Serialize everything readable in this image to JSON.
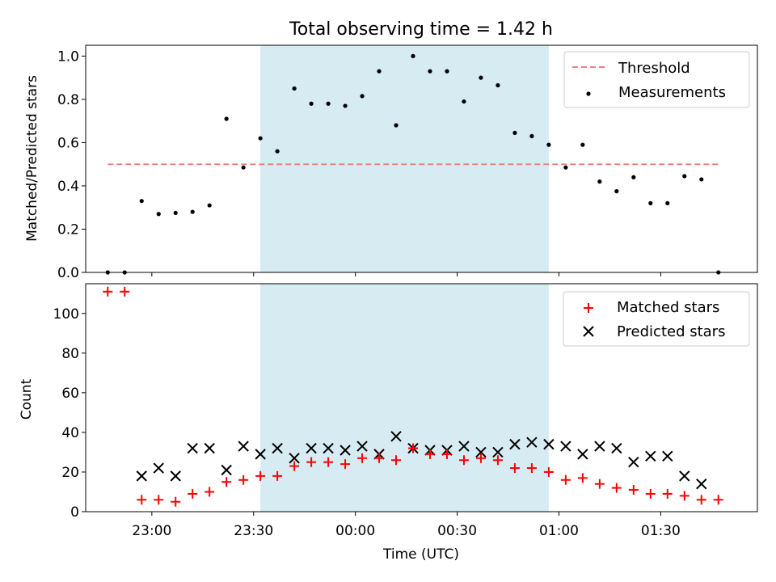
{
  "chart_data": [
    {
      "type": "scatter",
      "title": "Total observing time = 1.42 h",
      "xlabel": "",
      "ylabel": "Matched/Predicted stars",
      "ylim": [
        0,
        1.05
      ],
      "yticks": [
        "0.0",
        "0.2",
        "0.4",
        "0.6",
        "0.8",
        "1.0"
      ],
      "highlight_span": [
        "23:32",
        "00:57"
      ],
      "highlight_color": "#add8e6",
      "threshold": {
        "name": "Threshold",
        "value": 0.5,
        "x_range": [
          "22:47",
          "01:47"
        ],
        "color": "#f08080"
      },
      "series": [
        {
          "name": "Measurements",
          "color": "#000000",
          "x": [
            "22:47",
            "22:52",
            "22:57",
            "23:02",
            "23:07",
            "23:12",
            "23:17",
            "23:22",
            "23:27",
            "23:32",
            "23:37",
            "23:42",
            "23:47",
            "23:52",
            "23:57",
            "00:02",
            "00:07",
            "00:12",
            "00:17",
            "00:22",
            "00:27",
            "00:32",
            "00:37",
            "00:42",
            "00:47",
            "00:52",
            "00:57",
            "01:02",
            "01:07",
            "01:12",
            "01:17",
            "01:22",
            "01:27",
            "01:32",
            "01:37",
            "01:42",
            "01:47"
          ],
          "values": [
            0.0,
            0.0,
            0.33,
            0.27,
            0.275,
            0.28,
            0.31,
            0.71,
            0.485,
            0.62,
            0.56,
            0.85,
            0.78,
            0.78,
            0.77,
            0.815,
            0.93,
            0.68,
            1.0,
            0.93,
            0.93,
            0.79,
            0.9,
            0.865,
            0.645,
            0.63,
            0.59,
            0.485,
            0.59,
            0.42,
            0.375,
            0.44,
            0.32,
            0.32,
            0.445,
            0.43,
            0.0
          ]
        }
      ],
      "legend": [
        "Threshold",
        "Measurements"
      ],
      "legend_position": "top-right"
    },
    {
      "type": "scatter",
      "title": "",
      "xlabel": "Time (UTC)",
      "ylabel": "Count",
      "ylim": [
        0,
        115
      ],
      "yticks": [
        "0",
        "20",
        "40",
        "60",
        "80",
        "100"
      ],
      "xticks": [
        "23:00",
        "23:30",
        "00:00",
        "00:30",
        "01:00",
        "01:30"
      ],
      "highlight_span": [
        "23:32",
        "00:57"
      ],
      "highlight_color": "#add8e6",
      "series": [
        {
          "name": "Matched stars",
          "marker": "plus",
          "color": "#ff0000",
          "x": [
            "22:47",
            "22:52",
            "22:57",
            "23:02",
            "23:07",
            "23:12",
            "23:17",
            "23:22",
            "23:27",
            "23:32",
            "23:37",
            "23:42",
            "23:47",
            "23:52",
            "23:57",
            "00:02",
            "00:07",
            "00:12",
            "00:17",
            "00:22",
            "00:27",
            "00:32",
            "00:37",
            "00:42",
            "00:47",
            "00:52",
            "00:57",
            "01:02",
            "01:07",
            "01:12",
            "01:17",
            "01:22",
            "01:27",
            "01:32",
            "01:37",
            "01:42",
            "01:47"
          ],
          "values": [
            111,
            111,
            6,
            6,
            5,
            9,
            10,
            15,
            16,
            18,
            18,
            23,
            25,
            25,
            24,
            27,
            27,
            26,
            32,
            29,
            29,
            26,
            27,
            26,
            22,
            22,
            20,
            16,
            17,
            14,
            12,
            11,
            9,
            9,
            8,
            6,
            6
          ]
        },
        {
          "name": "Predicted stars",
          "marker": "x",
          "color": "#000000",
          "x": [
            "22:57",
            "23:02",
            "23:07",
            "23:12",
            "23:17",
            "23:22",
            "23:27",
            "23:32",
            "23:37",
            "23:42",
            "23:47",
            "23:52",
            "23:57",
            "00:02",
            "00:07",
            "00:12",
            "00:17",
            "00:22",
            "00:27",
            "00:32",
            "00:37",
            "00:42",
            "00:47",
            "00:52",
            "00:57",
            "01:02",
            "01:07",
            "01:12",
            "01:17",
            "01:22",
            "01:27",
            "01:32",
            "01:37",
            "01:42"
          ],
          "values": [
            18,
            22,
            18,
            32,
            32,
            21,
            33,
            29,
            32,
            27,
            32,
            32,
            31,
            33,
            29,
            38,
            32,
            31,
            31,
            33,
            30,
            30,
            34,
            35,
            34,
            33,
            29,
            33,
            32,
            25,
            28,
            28,
            18,
            14
          ]
        }
      ],
      "legend": [
        "Matched stars",
        "Predicted stars"
      ],
      "legend_position": "top-right"
    }
  ]
}
